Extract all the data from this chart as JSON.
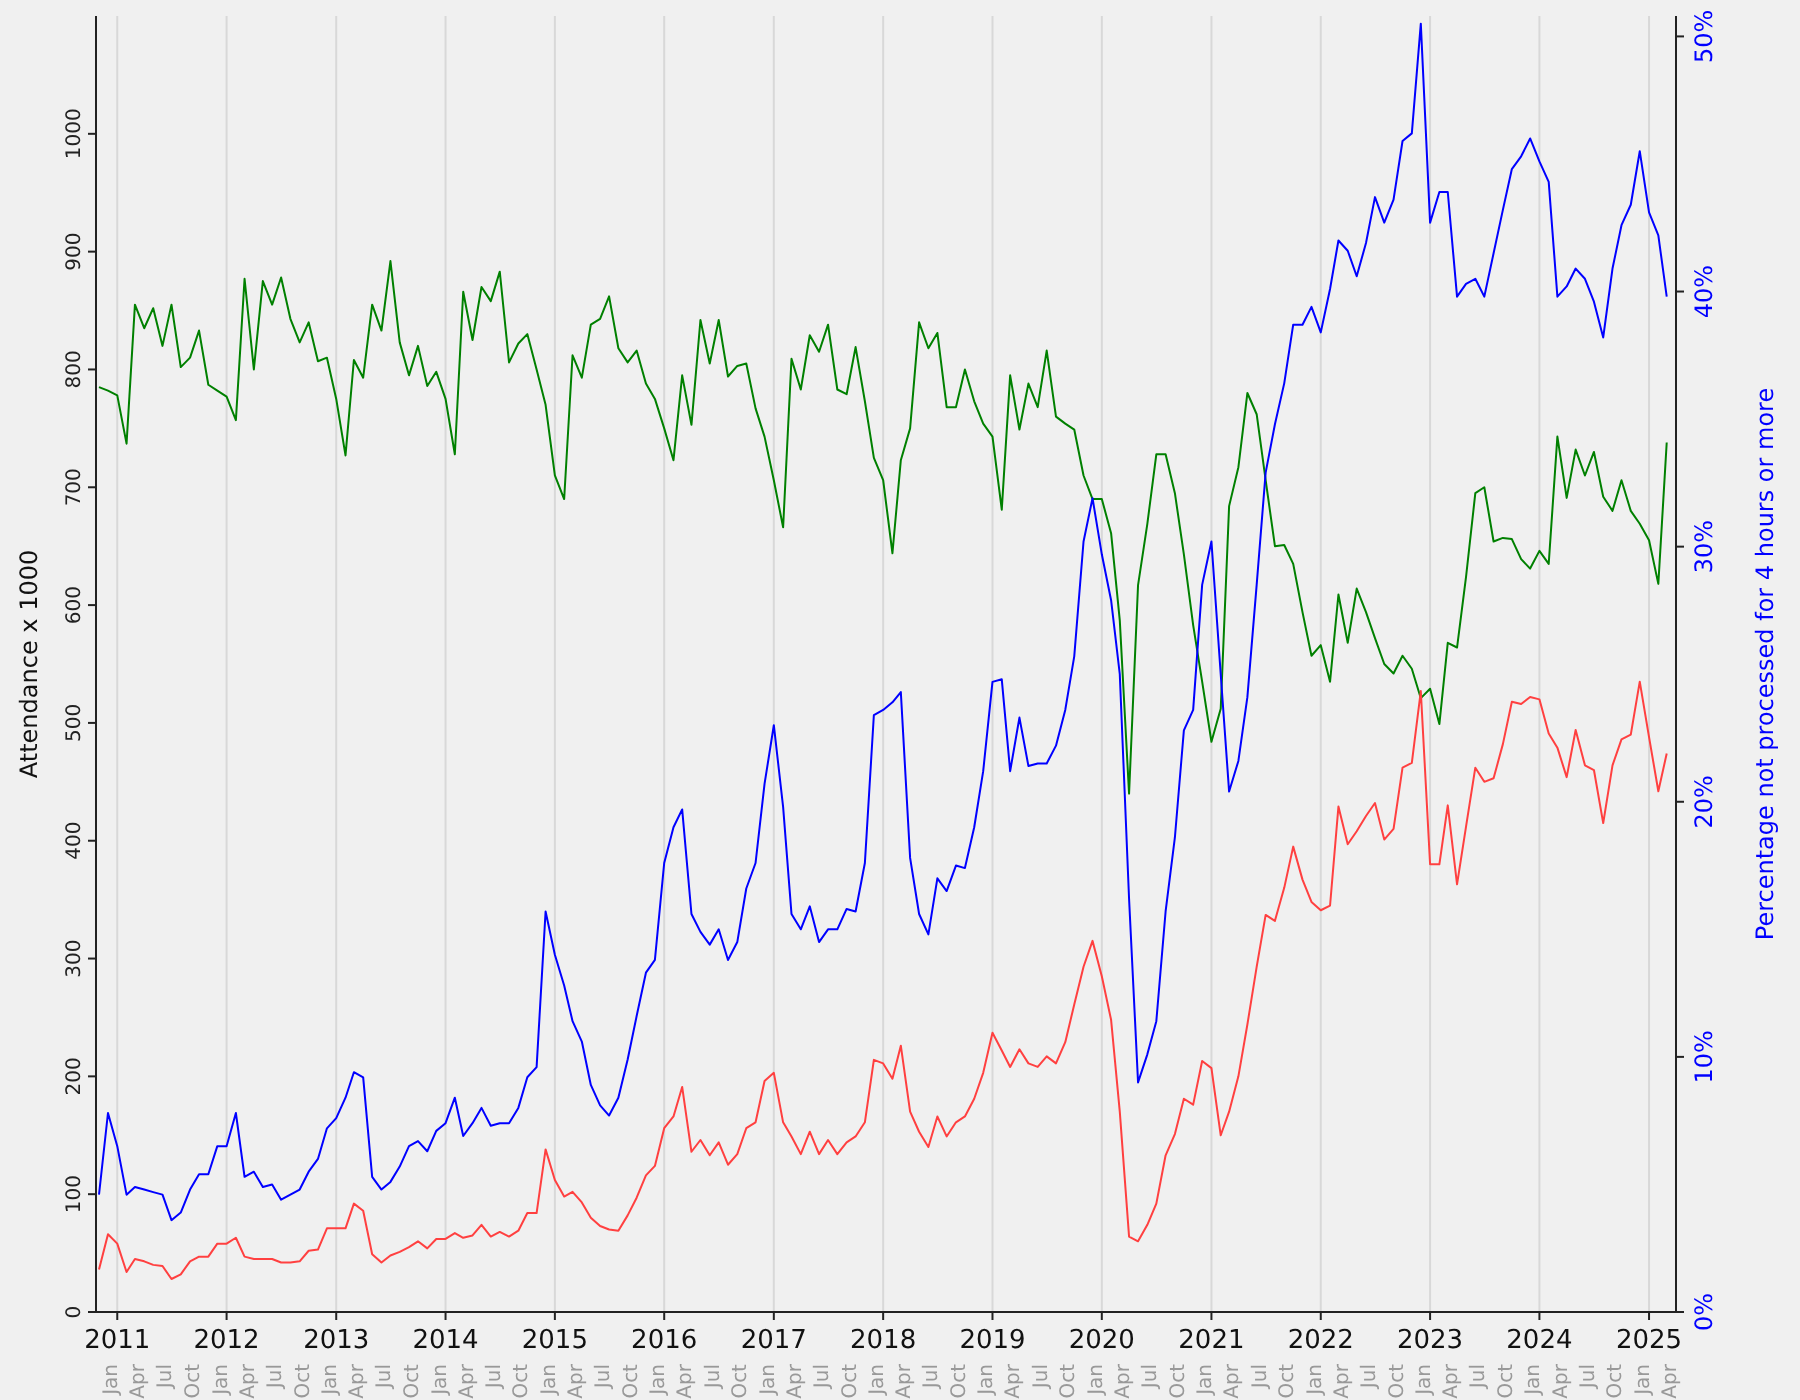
{
  "chart_data": {
    "type": "line",
    "ylabel": "Attendance x 1000",
    "y2label": "Percentage not processed for 4 hours or more",
    "grid": "x",
    "marker": "none",
    "line_style": "solid",
    "xlim": [
      "2010-10-22",
      "2025-04-01"
    ],
    "x2lim": [
      "2010-10-22",
      "2025-04-01"
    ],
    "xticks": [
      {
        "value": "2011-01",
        "label": "2011"
      },
      {
        "value": "2012-01",
        "label": "2012"
      },
      {
        "value": "2013-01",
        "label": "2013"
      },
      {
        "value": "2014-01",
        "label": "2014"
      },
      {
        "value": "2015-01",
        "label": "2015"
      },
      {
        "value": "2016-01",
        "label": "2016"
      },
      {
        "value": "2017-01",
        "label": "2017"
      },
      {
        "value": "2018-01",
        "label": "2018"
      },
      {
        "value": "2019-01",
        "label": "2019"
      },
      {
        "value": "2020-01",
        "label": "2020"
      },
      {
        "value": "2021-01",
        "label": "2021"
      },
      {
        "value": "2022-01",
        "label": "2022"
      },
      {
        "value": "2023-01",
        "label": "2023"
      },
      {
        "value": "2024-01",
        "label": "2024"
      },
      {
        "value": "2025-01",
        "label": "2025"
      }
    ],
    "x2ticks": [
      {
        "value": "2011-01",
        "label": "Jan"
      },
      {
        "value": "2011-04",
        "label": "Apr"
      },
      {
        "value": "2011-07",
        "label": "Jul"
      },
      {
        "value": "2011-10",
        "label": "Oct"
      },
      {
        "value": "2012-01",
        "label": "Jan"
      },
      {
        "value": "2012-04",
        "label": "Apr"
      },
      {
        "value": "2012-07",
        "label": "Jul"
      },
      {
        "value": "2012-10",
        "label": "Oct"
      },
      {
        "value": "2013-01",
        "label": "Jan"
      },
      {
        "value": "2013-04",
        "label": "Apr"
      },
      {
        "value": "2013-07",
        "label": "Jul"
      },
      {
        "value": "2013-10",
        "label": "Oct"
      },
      {
        "value": "2014-01",
        "label": "Jan"
      },
      {
        "value": "2014-04",
        "label": "Apr"
      },
      {
        "value": "2014-07",
        "label": "Jul"
      },
      {
        "value": "2014-10",
        "label": "Oct"
      },
      {
        "value": "2015-01",
        "label": "Jan"
      },
      {
        "value": "2015-04",
        "label": "Apr"
      },
      {
        "value": "2015-07",
        "label": "Jul"
      },
      {
        "value": "2015-10",
        "label": "Oct"
      },
      {
        "value": "2016-01",
        "label": "Jan"
      },
      {
        "value": "2016-04",
        "label": "Apr"
      },
      {
        "value": "2016-07",
        "label": "Jul"
      },
      {
        "value": "2016-10",
        "label": "Oct"
      },
      {
        "value": "2017-01",
        "label": "Jan"
      },
      {
        "value": "2017-04",
        "label": "Apr"
      },
      {
        "value": "2017-07",
        "label": "Jul"
      },
      {
        "value": "2017-10",
        "label": "Oct"
      },
      {
        "value": "2018-01",
        "label": "Jan"
      },
      {
        "value": "2018-04",
        "label": "Apr"
      },
      {
        "value": "2018-07",
        "label": "Jul"
      },
      {
        "value": "2018-10",
        "label": "Oct"
      },
      {
        "value": "2019-01",
        "label": "Jan"
      },
      {
        "value": "2019-04",
        "label": "Apr"
      },
      {
        "value": "2019-07",
        "label": "Jul"
      },
      {
        "value": "2019-10",
        "label": "Oct"
      },
      {
        "value": "2020-01",
        "label": "Jan"
      },
      {
        "value": "2020-04",
        "label": "Apr"
      },
      {
        "value": "2020-07",
        "label": "Jul"
      },
      {
        "value": "2020-10",
        "label": "Oct"
      },
      {
        "value": "2021-01",
        "label": "Jan"
      },
      {
        "value": "2021-04",
        "label": "Apr"
      },
      {
        "value": "2021-07",
        "label": "Jul"
      },
      {
        "value": "2021-10",
        "label": "Oct"
      },
      {
        "value": "2022-01",
        "label": "Jan"
      },
      {
        "value": "2022-04",
        "label": "Apr"
      },
      {
        "value": "2022-07",
        "label": "Jul"
      },
      {
        "value": "2022-10",
        "label": "Oct"
      },
      {
        "value": "2023-01",
        "label": "Jan"
      },
      {
        "value": "2023-04",
        "label": "Apr"
      },
      {
        "value": "2023-07",
        "label": "Jul"
      },
      {
        "value": "2023-10",
        "label": "Oct"
      },
      {
        "value": "2024-01",
        "label": "Jan"
      },
      {
        "value": "2024-04",
        "label": "Apr"
      },
      {
        "value": "2024-07",
        "label": "Jul"
      },
      {
        "value": "2024-10",
        "label": "Oct"
      },
      {
        "value": "2025-01",
        "label": "Jan"
      },
      {
        "value": "2025-04",
        "label": "Apr"
      }
    ],
    "ylim": [
      0,
      1100
    ],
    "yticks": [
      0,
      100,
      200,
      300,
      400,
      500,
      600,
      700,
      800,
      900,
      1000
    ],
    "y2lim": [
      0,
      50.8
    ],
    "y2ticks": [
      {
        "value": 0,
        "label": "0%"
      },
      {
        "value": 10,
        "label": "10%"
      },
      {
        "value": 20,
        "label": "20%"
      },
      {
        "value": 30,
        "label": "30%"
      },
      {
        "value": 40,
        "label": "40%"
      },
      {
        "value": 50,
        "label": "50%"
      }
    ],
    "x": [
      "2010-11",
      "2010-12",
      "2011-01",
      "2011-02",
      "2011-03",
      "2011-04",
      "2011-05",
      "2011-06",
      "2011-07",
      "2011-08",
      "2011-09",
      "2011-10",
      "2011-11",
      "2011-12",
      "2012-01",
      "2012-02",
      "2012-03",
      "2012-04",
      "2012-05",
      "2012-06",
      "2012-07",
      "2012-08",
      "2012-09",
      "2012-10",
      "2012-11",
      "2012-12",
      "2013-01",
      "2013-02",
      "2013-03",
      "2013-04",
      "2013-05",
      "2013-06",
      "2013-07",
      "2013-08",
      "2013-09",
      "2013-10",
      "2013-11",
      "2013-12",
      "2014-01",
      "2014-02",
      "2014-03",
      "2014-04",
      "2014-05",
      "2014-06",
      "2014-07",
      "2014-08",
      "2014-09",
      "2014-10",
      "2014-11",
      "2014-12",
      "2015-01",
      "2015-02",
      "2015-03",
      "2015-04",
      "2015-05",
      "2015-06",
      "2015-07",
      "2015-08",
      "2015-09",
      "2015-10",
      "2015-11",
      "2015-12",
      "2016-01",
      "2016-02",
      "2016-03",
      "2016-04",
      "2016-05",
      "2016-06",
      "2016-07",
      "2016-08",
      "2016-09",
      "2016-10",
      "2016-11",
      "2016-12",
      "2017-01",
      "2017-02",
      "2017-03",
      "2017-04",
      "2017-05",
      "2017-06",
      "2017-07",
      "2017-08",
      "2017-09",
      "2017-10",
      "2017-11",
      "2017-12",
      "2018-01",
      "2018-02",
      "2018-03",
      "2018-04",
      "2018-05",
      "2018-06",
      "2018-07",
      "2018-08",
      "2018-09",
      "2018-10",
      "2018-11",
      "2018-12",
      "2019-01",
      "2019-02",
      "2019-03",
      "2019-04",
      "2019-05",
      "2019-06",
      "2019-07",
      "2019-08",
      "2019-09",
      "2019-10",
      "2019-11",
      "2019-12",
      "2020-01",
      "2020-02",
      "2020-03",
      "2020-04",
      "2020-05",
      "2020-06",
      "2020-07",
      "2020-08",
      "2020-09",
      "2020-10",
      "2020-11",
      "2020-12",
      "2021-01",
      "2021-02",
      "2021-03",
      "2021-04",
      "2021-05",
      "2021-06",
      "2021-07",
      "2021-08",
      "2021-09",
      "2021-10",
      "2021-11",
      "2021-12",
      "2022-01",
      "2022-02",
      "2022-03",
      "2022-04",
      "2022-05",
      "2022-06",
      "2022-07",
      "2022-08",
      "2022-09",
      "2022-10",
      "2022-11",
      "2022-12",
      "2023-01",
      "2023-02",
      "2023-03",
      "2023-04",
      "2023-05",
      "2023-06",
      "2023-07",
      "2023-08",
      "2023-09",
      "2023-10",
      "2023-11",
      "2023-12",
      "2024-01",
      "2024-02",
      "2024-03",
      "2024-04",
      "2024-05",
      "2024-06",
      "2024-07",
      "2024-08",
      "2024-09",
      "2024-10",
      "2024-11",
      "2024-12",
      "2025-01",
      "2025-02",
      "2025-03"
    ],
    "series": [
      {
        "color": "#008000",
        "values": [
          785,
          782,
          778,
          737,
          855,
          835,
          852,
          820,
          855,
          802,
          810,
          833,
          787,
          782,
          777,
          757,
          877,
          800,
          875,
          855,
          878,
          843,
          823,
          840,
          807,
          810,
          775,
          727,
          808,
          793,
          855,
          833,
          892,
          823,
          795,
          820,
          786,
          798,
          775,
          728,
          866,
          825,
          870,
          858,
          883,
          806,
          822,
          830,
          800,
          770,
          710,
          690,
          812,
          793,
          838,
          843,
          862,
          818,
          806,
          816,
          788,
          775,
          750,
          723,
          795,
          753,
          842,
          805,
          842,
          794,
          803,
          805,
          767,
          743,
          706,
          666,
          809,
          783,
          829,
          815,
          838,
          783,
          779,
          819,
          773,
          725,
          706,
          644,
          723,
          750,
          840,
          818,
          831,
          768,
          768,
          800,
          773,
          754,
          743,
          681,
          795,
          749,
          788,
          768,
          816,
          760,
          754,
          749,
          710,
          690,
          690,
          661,
          587,
          440,
          617,
          669,
          728,
          728,
          695,
          643,
          583,
          535,
          484,
          512,
          684,
          717,
          780,
          762,
          706,
          650,
          651,
          635,
          594,
          557,
          566,
          535,
          609,
          568,
          614,
          594,
          572,
          550,
          542,
          557,
          546,
          521,
          529,
          499,
          568,
          564,
          624,
          695,
          700,
          654,
          657,
          656,
          639,
          631,
          646,
          635,
          743,
          691,
          732,
          710,
          730,
          692,
          680,
          706,
          680,
          669,
          655,
          618,
          738
        ]
      },
      {
        "color": "#ff4040",
        "values": [
          36,
          66,
          58,
          34,
          45,
          43,
          40,
          39,
          28,
          32,
          43,
          47,
          47,
          58,
          58,
          63,
          47,
          45,
          45,
          45,
          42,
          42,
          43,
          52,
          53,
          71,
          71,
          71,
          92,
          86,
          49,
          42,
          48,
          51,
          55,
          60,
          54,
          62,
          62,
          67,
          63,
          65,
          74,
          64,
          68,
          64,
          69,
          84,
          84,
          138,
          112,
          98,
          102,
          93,
          80,
          73,
          70,
          69,
          82,
          97,
          116,
          124,
          156,
          166,
          191,
          136,
          146,
          133,
          144,
          125,
          134,
          156,
          161,
          196,
          203,
          161,
          149,
          134,
          153,
          134,
          146,
          134,
          144,
          149,
          161,
          214,
          211,
          198,
          226,
          170,
          153,
          140,
          166,
          149,
          161,
          166,
          181,
          203,
          237,
          222,
          208,
          223,
          211,
          208,
          217,
          211,
          229,
          261,
          293,
          315,
          285,
          248,
          170,
          64,
          60,
          74,
          92,
          133,
          151,
          181,
          176,
          213,
          207,
          150,
          170,
          200,
          244,
          293,
          337,
          332,
          360,
          395,
          367,
          348,
          341,
          345,
          429,
          397,
          408,
          421,
          432,
          401,
          410,
          462,
          466,
          527,
          380,
          380,
          430,
          363,
          412,
          462,
          450,
          453,
          482,
          518,
          516,
          522,
          520,
          491,
          479,
          454,
          494,
          464,
          460,
          415,
          464,
          486,
          490,
          535,
          488,
          442,
          474
        ]
      },
      {
        "color": "#0000ff",
        "axis": "y2",
        "values": [
          4.6,
          7.8,
          6.5,
          4.6,
          4.9,
          4.8,
          4.7,
          4.6,
          3.6,
          3.9,
          4.8,
          5.4,
          5.4,
          6.5,
          6.5,
          7.8,
          5.3,
          5.5,
          4.9,
          5.0,
          4.4,
          4.6,
          4.8,
          5.5,
          6.0,
          7.2,
          7.6,
          8.4,
          9.4,
          9.2,
          5.3,
          4.8,
          5.1,
          5.7,
          6.5,
          6.7,
          6.3,
          7.1,
          7.4,
          8.4,
          6.9,
          7.4,
          8.0,
          7.3,
          7.4,
          7.4,
          8.0,
          9.2,
          9.6,
          15.7,
          14.0,
          12.8,
          11.4,
          10.6,
          8.9,
          8.1,
          7.7,
          8.4,
          9.9,
          11.6,
          13.3,
          13.8,
          17.6,
          19.0,
          19.7,
          15.6,
          14.9,
          14.4,
          15.0,
          13.8,
          14.5,
          16.6,
          17.6,
          20.7,
          23.0,
          19.8,
          15.6,
          15.0,
          15.9,
          14.5,
          15.0,
          15.0,
          15.8,
          15.7,
          17.6,
          23.4,
          23.6,
          23.9,
          24.3,
          17.8,
          15.6,
          14.8,
          17.0,
          16.5,
          17.5,
          17.4,
          19.0,
          21.2,
          24.7,
          24.8,
          21.2,
          23.3,
          21.4,
          21.5,
          21.5,
          22.2,
          23.6,
          25.7,
          30.2,
          31.9,
          29.7,
          27.9,
          25.0,
          16.2,
          9.0,
          10.1,
          11.4,
          15.7,
          18.6,
          22.8,
          23.6,
          28.5,
          30.2,
          25.0,
          20.4,
          21.6,
          24.1,
          28.5,
          32.9,
          34.8,
          36.4,
          38.7,
          38.7,
          39.4,
          38.4,
          40.1,
          42.0,
          41.6,
          40.6,
          41.9,
          43.7,
          42.7,
          43.6,
          45.9,
          46.2,
          50.5,
          42.7,
          43.9,
          43.9,
          39.8,
          40.3,
          40.5,
          39.8,
          41.5,
          43.2,
          44.8,
          45.3,
          46.0,
          45.1,
          44.3,
          39.8,
          40.2,
          40.9,
          40.5,
          39.6,
          38.2,
          40.9,
          42.6,
          43.4,
          45.5,
          43.1,
          42.2,
          39.8
        ]
      }
    ]
  }
}
